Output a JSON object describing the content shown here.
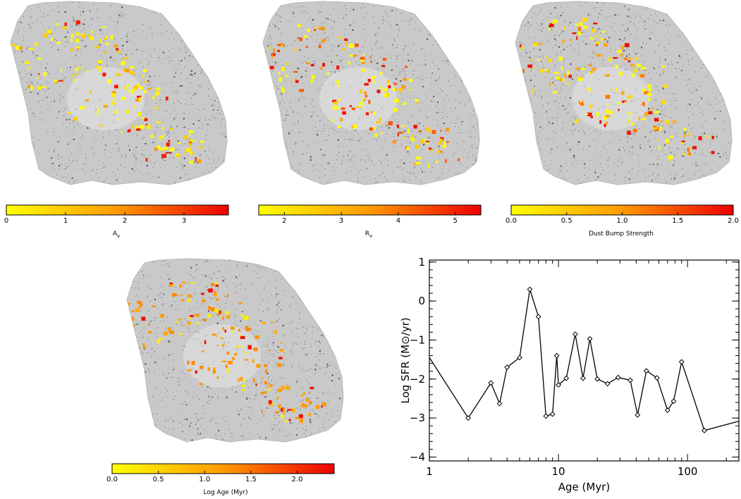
{
  "colorbar_gradient": {
    "start": "#ffff00",
    "mid": "#ff9900",
    "end": "#ee0000"
  },
  "maps": [
    {
      "name": "av-map",
      "colorbar": {
        "ticks": [
          "0",
          "1",
          "2",
          "3"
        ],
        "tick_values": [
          0,
          1,
          2,
          3
        ],
        "range": [
          0,
          3.75
        ],
        "label": "A",
        "label_sub": "v"
      },
      "highlight_colors": [
        "#ffff00",
        "#ffee00",
        "#ffcc00",
        "#ff9900",
        "#ee2200"
      ]
    },
    {
      "name": "rv-map",
      "colorbar": {
        "ticks": [
          "2",
          "3",
          "4",
          "5"
        ],
        "tick_values": [
          2,
          3,
          4,
          5
        ],
        "range": [
          1.55,
          5.45
        ],
        "label": "R",
        "label_sub": "v"
      },
      "highlight_colors": [
        "#ffff00",
        "#ffcc00",
        "#ff9900",
        "#ff5500",
        "#ee1100"
      ]
    },
    {
      "name": "dust-bump-map",
      "colorbar": {
        "ticks": [
          "0.0",
          "0.5",
          "1.0",
          "1.5",
          "2.0"
        ],
        "tick_values": [
          0,
          0.5,
          1.0,
          1.5,
          2.0
        ],
        "range": [
          0,
          2.0
        ],
        "label": "Dust Bump Strength",
        "label_sub": ""
      },
      "highlight_colors": [
        "#ffff00",
        "#ffdd00",
        "#ffaa00",
        "#ff7700",
        "#ee1100"
      ]
    },
    {
      "name": "log-age-map",
      "colorbar": {
        "ticks": [
          "0.0",
          "0.5",
          "1.0",
          "1.5",
          "2.0"
        ],
        "tick_values": [
          0,
          0.5,
          1.0,
          1.5,
          2.0
        ],
        "range": [
          0,
          2.4
        ],
        "label": "Log Age (Myr)",
        "label_sub": ""
      },
      "highlight_colors": [
        "#ff9900",
        "#ff8800",
        "#ffaa00",
        "#ffee00",
        "#ee1100"
      ]
    }
  ],
  "chart_data": {
    "type": "line",
    "xlabel": "Age (Myr)",
    "ylabel": "Log SFR (M⊙/yr)",
    "xscale": "log",
    "xlim": [
      1,
      250
    ],
    "ylim": [
      -4.1,
      1.05
    ],
    "xticks": [
      1,
      10,
      100
    ],
    "xtick_labels": [
      "1",
      "10",
      "100"
    ],
    "yticks": [
      1,
      0,
      -1,
      -2,
      -3,
      -4
    ],
    "ytick_labels": [
      "1",
      "0",
      "−1",
      "−2",
      "−3",
      "−4"
    ],
    "marker": "diamond",
    "line_start": [
      1.0,
      -1.45
    ],
    "line_end": [
      250,
      -3.08
    ],
    "points": [
      [
        2.0,
        -3.0
      ],
      [
        3.0,
        -2.1
      ],
      [
        3.5,
        -2.63
      ],
      [
        4.0,
        -1.7
      ],
      [
        5.0,
        -1.45
      ],
      [
        6.0,
        0.3
      ],
      [
        7.0,
        -0.4
      ],
      [
        8.0,
        -2.95
      ],
      [
        9.0,
        -2.9
      ],
      [
        9.7,
        -1.4
      ],
      [
        10.0,
        -2.15
      ],
      [
        11.5,
        -1.98
      ],
      [
        13.5,
        -0.85
      ],
      [
        15.5,
        -1.98
      ],
      [
        17.5,
        -0.97
      ],
      [
        20.0,
        -2.0
      ],
      [
        24.0,
        -2.12
      ],
      [
        29.0,
        -1.96
      ],
      [
        36.0,
        -2.03
      ],
      [
        41.0,
        -2.92
      ],
      [
        48.0,
        -1.79
      ],
      [
        58.0,
        -1.97
      ],
      [
        70.0,
        -2.8
      ],
      [
        78.0,
        -2.57
      ],
      [
        90.0,
        -1.56
      ],
      [
        135.0,
        -3.32
      ]
    ]
  }
}
